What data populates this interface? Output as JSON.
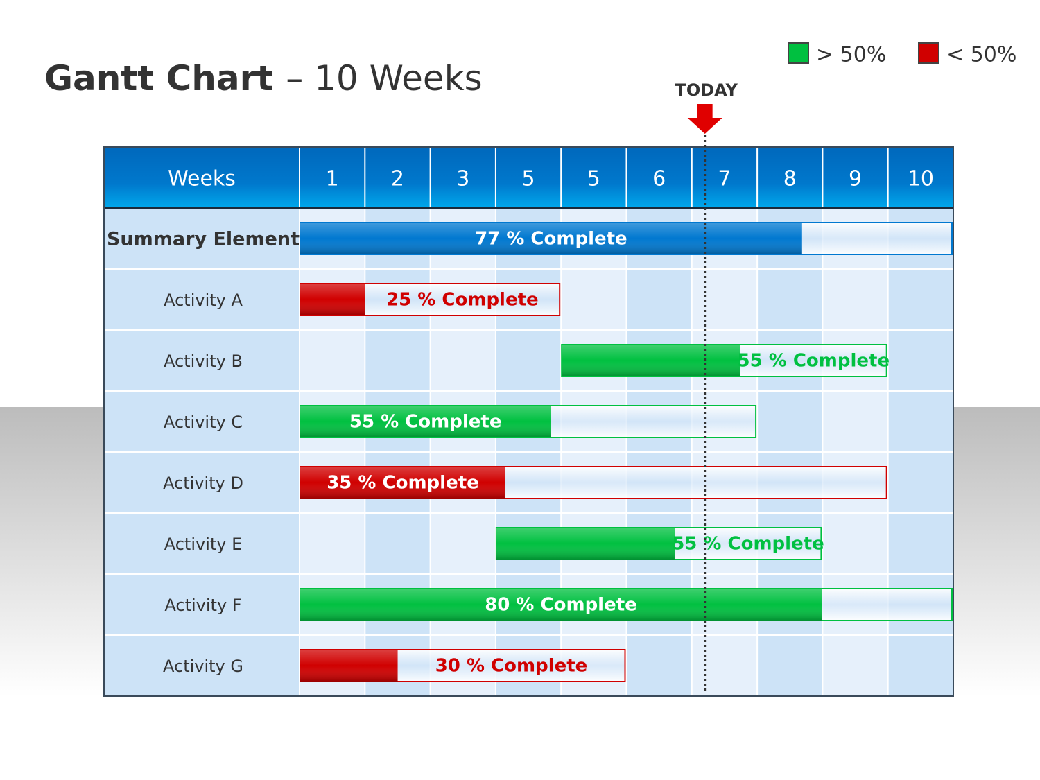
{
  "chart_data": {
    "type": "gantt",
    "title": "Gantt Chart",
    "subtitle": "– 10 Weeks",
    "legend": [
      {
        "name": "> 50%",
        "color": "#00c040"
      },
      {
        "name": "< 50%",
        "color": "#d00000"
      }
    ],
    "column_header": "Weeks",
    "weeks": [
      "1",
      "2",
      "3",
      "5",
      "5",
      "6",
      "7",
      "8",
      "9",
      "10"
    ],
    "xlim": [
      0,
      10
    ],
    "categories": [
      "Summary Element",
      "Activity A",
      "Activity B",
      "Activity C",
      "Activity D",
      "Activity E",
      "Activity F",
      "Activity G"
    ],
    "start": [
      0,
      0,
      4,
      0,
      0,
      3,
      0,
      0
    ],
    "end": [
      10,
      4,
      9,
      7,
      9,
      8,
      10,
      5
    ],
    "values": [
      77,
      25,
      55,
      55,
      35,
      55,
      80,
      30
    ],
    "value_labels": [
      "77 % Complete",
      "25 % Complete",
      "55 % Complete",
      "55 % Complete",
      "35 % Complete",
      "55 % Complete",
      "80 % Complete",
      "30 % Complete"
    ],
    "colors": [
      "#0078d0",
      "#d00000",
      "#00c040",
      "#00c040",
      "#d00000",
      "#00c040",
      "#00c040",
      "#d00000"
    ],
    "today": {
      "label": "TODAY",
      "value": 6.2
    }
  }
}
